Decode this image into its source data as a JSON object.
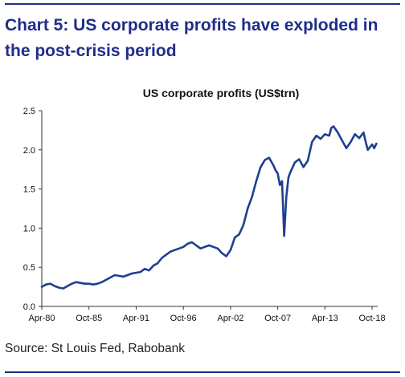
{
  "header": {
    "headline_line1": "Chart 5: US corporate profits have exploded in",
    "headline_line2": "the post-crisis period"
  },
  "source": "Source: St Louis Fed, Rabobank",
  "colors": {
    "accent": "#1f2d8a",
    "line": "#1f3f8f"
  },
  "chart_data": {
    "type": "line",
    "title": "US corporate profits (US$trn)",
    "xlabel": "",
    "ylabel": "",
    "ylim": [
      0,
      2.5
    ],
    "yticks": [
      "0.0",
      "0.5",
      "1.0",
      "1.5",
      "2.0",
      "2.5"
    ],
    "xlim": [
      1980.25,
      2019.4
    ],
    "xticks": [
      {
        "label": "Apr-80",
        "x": 1980.25
      },
      {
        "label": "Oct-85",
        "x": 1985.75
      },
      {
        "label": "Apr-91",
        "x": 1991.25
      },
      {
        "label": "Oct-96",
        "x": 1996.75
      },
      {
        "label": "Apr-02",
        "x": 2002.25
      },
      {
        "label": "Oct-07",
        "x": 2007.75
      },
      {
        "label": "Apr-13",
        "x": 2013.25
      },
      {
        "label": "Oct-18",
        "x": 2018.75
      }
    ],
    "grid": false,
    "legend": "none",
    "series": [
      {
        "x": [
          1980.25,
          1980.75,
          1981.25,
          1981.75,
          1982.25,
          1982.75,
          1983.25,
          1983.75,
          1984.25,
          1984.75,
          1985.25,
          1985.75,
          1986.25,
          1986.75,
          1987.25,
          1987.75,
          1988.25,
          1988.75,
          1989.25,
          1989.75,
          1990.25,
          1990.75,
          1991.25,
          1991.75,
          1992.25,
          1992.75,
          1993.25,
          1993.75,
          1994.25,
          1994.75,
          1995.25,
          1995.75,
          1996.25,
          1996.75,
          1997.25,
          1997.75,
          1998.25,
          1998.75,
          1999.25,
          1999.75,
          2000.25,
          2000.75,
          2001.25,
          2001.75,
          2002.25,
          2002.75,
          2003.25,
          2003.75,
          2004.25,
          2004.75,
          2005.25,
          2005.75,
          2006.25,
          2006.75,
          2007.25,
          2007.5,
          2007.75,
          2008.0,
          2008.25,
          2008.5,
          2008.75,
          2009.0,
          2009.25,
          2009.75,
          2010.25,
          2010.75,
          2011.25,
          2011.75,
          2012.25,
          2012.75,
          2013.25,
          2013.75,
          2014.0,
          2014.25,
          2014.75,
          2015.25,
          2015.75,
          2016.25,
          2016.75,
          2017.25,
          2017.75,
          2018.0,
          2018.25,
          2018.75,
          2019.0,
          2019.25
        ],
        "values": [
          0.25,
          0.28,
          0.29,
          0.26,
          0.24,
          0.23,
          0.26,
          0.29,
          0.31,
          0.3,
          0.29,
          0.29,
          0.28,
          0.29,
          0.31,
          0.34,
          0.37,
          0.4,
          0.39,
          0.38,
          0.4,
          0.42,
          0.43,
          0.44,
          0.48,
          0.46,
          0.52,
          0.55,
          0.62,
          0.66,
          0.7,
          0.72,
          0.74,
          0.76,
          0.8,
          0.82,
          0.78,
          0.74,
          0.76,
          0.78,
          0.76,
          0.74,
          0.68,
          0.64,
          0.72,
          0.88,
          0.92,
          1.04,
          1.25,
          1.4,
          1.6,
          1.78,
          1.87,
          1.9,
          1.8,
          1.74,
          1.7,
          1.55,
          1.6,
          0.9,
          1.4,
          1.65,
          1.72,
          1.84,
          1.88,
          1.78,
          1.86,
          2.1,
          2.18,
          2.14,
          2.2,
          2.18,
          2.28,
          2.3,
          2.22,
          2.12,
          2.02,
          2.1,
          2.2,
          2.15,
          2.22,
          2.1,
          2.0,
          2.07,
          2.02,
          2.08
        ]
      }
    ]
  }
}
